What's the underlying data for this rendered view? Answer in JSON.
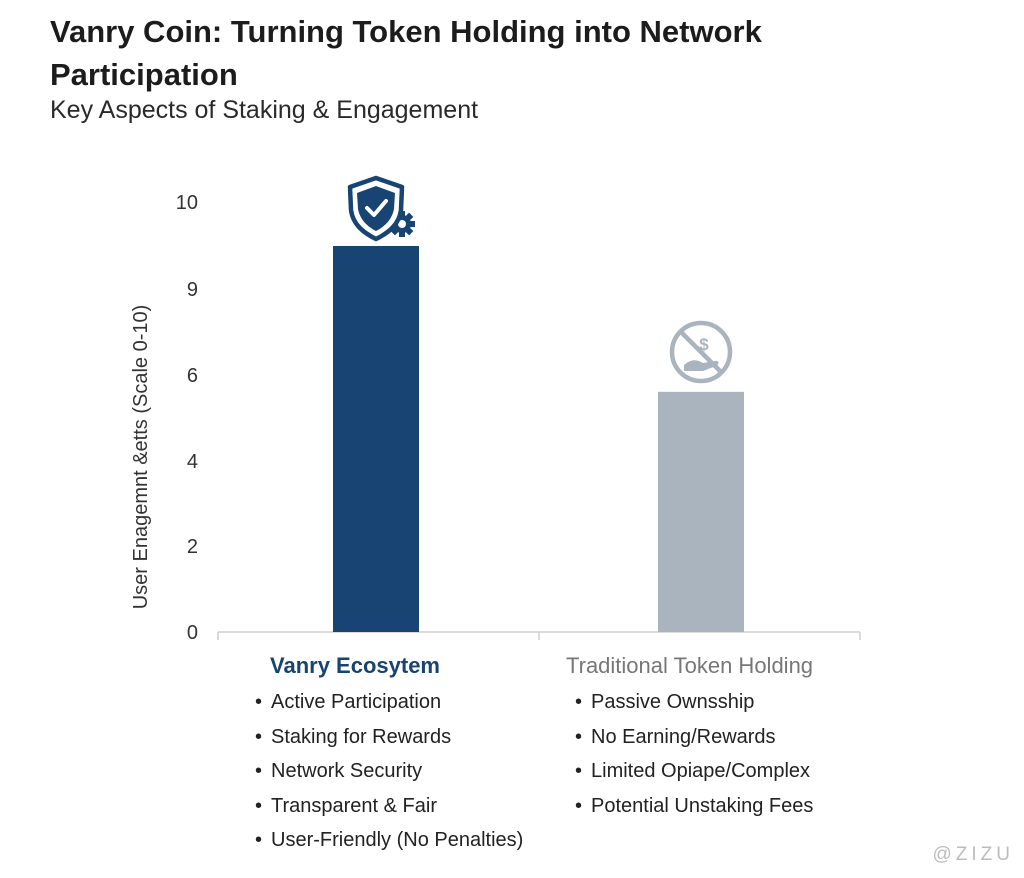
{
  "title": "Vanry Coin: Turning Token Holding into Network Participation",
  "subtitle": "Key Aspects of Staking & Engagement",
  "watermark": "@ZIZU",
  "colors": {
    "vanry": "#174472",
    "traditional": "#a9b4be",
    "axis": "#cfcfcf"
  },
  "chart_data": {
    "type": "bar",
    "ylabel": "User Enagemnt &etts (Scale 0-10)",
    "y_ticks": [
      0,
      2,
      4,
      6,
      9,
      10
    ],
    "ylim": [
      0,
      10
    ],
    "grid": false,
    "categories": [
      "Vanry Ecosytem",
      "Traditional Token Holding"
    ],
    "values": [
      9,
      5.6
    ],
    "icons": [
      "shield-check-gear-icon",
      "no-money-hand-icon"
    ]
  },
  "categories_detail": [
    {
      "title": "Vanry Ecosytem",
      "bullets": [
        "Active Participation",
        "Staking for Rewards",
        "Network Security",
        "Transparent & Fair",
        "User-Friendly (No Penalties)"
      ]
    },
    {
      "title": "Traditional Token Holding",
      "bullets": [
        "Passive Ownsship",
        "No Earning/Rewards",
        "Limited Opiape/Complex",
        "Potential Unstaking Fees"
      ]
    }
  ]
}
